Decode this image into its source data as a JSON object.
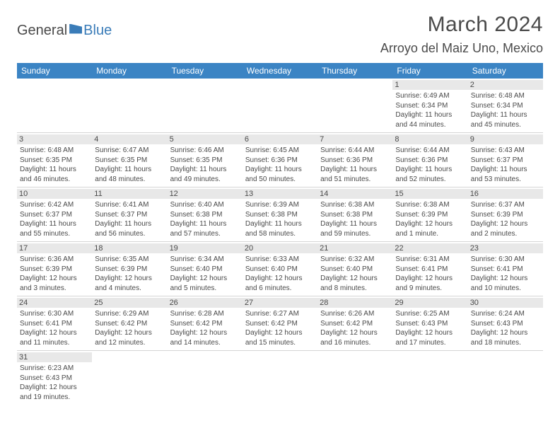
{
  "logo": {
    "general": "General",
    "blue": "Blue"
  },
  "header": {
    "month_title": "March 2024",
    "location": "Arroyo del Maiz Uno, Mexico"
  },
  "colors": {
    "header_bg": "#3b84c4",
    "daynum_bg": "#e8e8e8",
    "text": "#4a4a4a",
    "border": "#d5d5d5"
  },
  "weekdays": [
    "Sunday",
    "Monday",
    "Tuesday",
    "Wednesday",
    "Thursday",
    "Friday",
    "Saturday"
  ],
  "days": {
    "1": {
      "sunrise": "Sunrise: 6:49 AM",
      "sunset": "Sunset: 6:34 PM",
      "daylight": "Daylight: 11 hours and 44 minutes."
    },
    "2": {
      "sunrise": "Sunrise: 6:48 AM",
      "sunset": "Sunset: 6:34 PM",
      "daylight": "Daylight: 11 hours and 45 minutes."
    },
    "3": {
      "sunrise": "Sunrise: 6:48 AM",
      "sunset": "Sunset: 6:35 PM",
      "daylight": "Daylight: 11 hours and 46 minutes."
    },
    "4": {
      "sunrise": "Sunrise: 6:47 AM",
      "sunset": "Sunset: 6:35 PM",
      "daylight": "Daylight: 11 hours and 48 minutes."
    },
    "5": {
      "sunrise": "Sunrise: 6:46 AM",
      "sunset": "Sunset: 6:35 PM",
      "daylight": "Daylight: 11 hours and 49 minutes."
    },
    "6": {
      "sunrise": "Sunrise: 6:45 AM",
      "sunset": "Sunset: 6:36 PM",
      "daylight": "Daylight: 11 hours and 50 minutes."
    },
    "7": {
      "sunrise": "Sunrise: 6:44 AM",
      "sunset": "Sunset: 6:36 PM",
      "daylight": "Daylight: 11 hours and 51 minutes."
    },
    "8": {
      "sunrise": "Sunrise: 6:44 AM",
      "sunset": "Sunset: 6:36 PM",
      "daylight": "Daylight: 11 hours and 52 minutes."
    },
    "9": {
      "sunrise": "Sunrise: 6:43 AM",
      "sunset": "Sunset: 6:37 PM",
      "daylight": "Daylight: 11 hours and 53 minutes."
    },
    "10": {
      "sunrise": "Sunrise: 6:42 AM",
      "sunset": "Sunset: 6:37 PM",
      "daylight": "Daylight: 11 hours and 55 minutes."
    },
    "11": {
      "sunrise": "Sunrise: 6:41 AM",
      "sunset": "Sunset: 6:37 PM",
      "daylight": "Daylight: 11 hours and 56 minutes."
    },
    "12": {
      "sunrise": "Sunrise: 6:40 AM",
      "sunset": "Sunset: 6:38 PM",
      "daylight": "Daylight: 11 hours and 57 minutes."
    },
    "13": {
      "sunrise": "Sunrise: 6:39 AM",
      "sunset": "Sunset: 6:38 PM",
      "daylight": "Daylight: 11 hours and 58 minutes."
    },
    "14": {
      "sunrise": "Sunrise: 6:38 AM",
      "sunset": "Sunset: 6:38 PM",
      "daylight": "Daylight: 11 hours and 59 minutes."
    },
    "15": {
      "sunrise": "Sunrise: 6:38 AM",
      "sunset": "Sunset: 6:39 PM",
      "daylight": "Daylight: 12 hours and 1 minute."
    },
    "16": {
      "sunrise": "Sunrise: 6:37 AM",
      "sunset": "Sunset: 6:39 PM",
      "daylight": "Daylight: 12 hours and 2 minutes."
    },
    "17": {
      "sunrise": "Sunrise: 6:36 AM",
      "sunset": "Sunset: 6:39 PM",
      "daylight": "Daylight: 12 hours and 3 minutes."
    },
    "18": {
      "sunrise": "Sunrise: 6:35 AM",
      "sunset": "Sunset: 6:39 PM",
      "daylight": "Daylight: 12 hours and 4 minutes."
    },
    "19": {
      "sunrise": "Sunrise: 6:34 AM",
      "sunset": "Sunset: 6:40 PM",
      "daylight": "Daylight: 12 hours and 5 minutes."
    },
    "20": {
      "sunrise": "Sunrise: 6:33 AM",
      "sunset": "Sunset: 6:40 PM",
      "daylight": "Daylight: 12 hours and 6 minutes."
    },
    "21": {
      "sunrise": "Sunrise: 6:32 AM",
      "sunset": "Sunset: 6:40 PM",
      "daylight": "Daylight: 12 hours and 8 minutes."
    },
    "22": {
      "sunrise": "Sunrise: 6:31 AM",
      "sunset": "Sunset: 6:41 PM",
      "daylight": "Daylight: 12 hours and 9 minutes."
    },
    "23": {
      "sunrise": "Sunrise: 6:30 AM",
      "sunset": "Sunset: 6:41 PM",
      "daylight": "Daylight: 12 hours and 10 minutes."
    },
    "24": {
      "sunrise": "Sunrise: 6:30 AM",
      "sunset": "Sunset: 6:41 PM",
      "daylight": "Daylight: 12 hours and 11 minutes."
    },
    "25": {
      "sunrise": "Sunrise: 6:29 AM",
      "sunset": "Sunset: 6:42 PM",
      "daylight": "Daylight: 12 hours and 12 minutes."
    },
    "26": {
      "sunrise": "Sunrise: 6:28 AM",
      "sunset": "Sunset: 6:42 PM",
      "daylight": "Daylight: 12 hours and 14 minutes."
    },
    "27": {
      "sunrise": "Sunrise: 6:27 AM",
      "sunset": "Sunset: 6:42 PM",
      "daylight": "Daylight: 12 hours and 15 minutes."
    },
    "28": {
      "sunrise": "Sunrise: 6:26 AM",
      "sunset": "Sunset: 6:42 PM",
      "daylight": "Daylight: 12 hours and 16 minutes."
    },
    "29": {
      "sunrise": "Sunrise: 6:25 AM",
      "sunset": "Sunset: 6:43 PM",
      "daylight": "Daylight: 12 hours and 17 minutes."
    },
    "30": {
      "sunrise": "Sunrise: 6:24 AM",
      "sunset": "Sunset: 6:43 PM",
      "daylight": "Daylight: 12 hours and 18 minutes."
    },
    "31": {
      "sunrise": "Sunrise: 6:23 AM",
      "sunset": "Sunset: 6:43 PM",
      "daylight": "Daylight: 12 hours and 19 minutes."
    }
  },
  "grid": [
    [
      null,
      null,
      null,
      null,
      null,
      "1",
      "2"
    ],
    [
      "3",
      "4",
      "5",
      "6",
      "7",
      "8",
      "9"
    ],
    [
      "10",
      "11",
      "12",
      "13",
      "14",
      "15",
      "16"
    ],
    [
      "17",
      "18",
      "19",
      "20",
      "21",
      "22",
      "23"
    ],
    [
      "24",
      "25",
      "26",
      "27",
      "28",
      "29",
      "30"
    ],
    [
      "31",
      null,
      null,
      null,
      null,
      null,
      null
    ]
  ]
}
